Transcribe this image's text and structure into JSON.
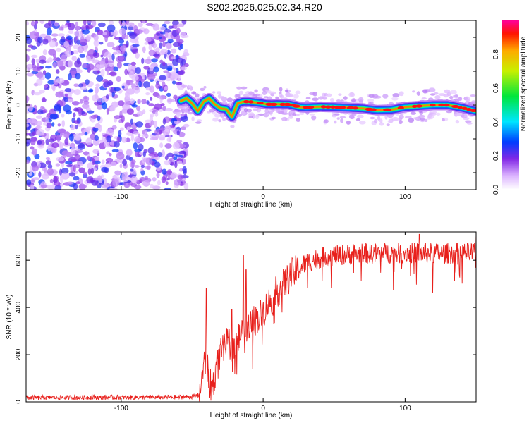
{
  "title": "S202.2026.025.02.34.R20",
  "chart_data": [
    {
      "type": "heatmap",
      "name": "spectrogram",
      "xlabel": "Height of straight line (km)",
      "ylabel": "Frequency (Hz)",
      "xlim": [
        -167,
        150
      ],
      "ylim": [
        -25,
        25
      ],
      "xticks": [
        -100,
        0,
        100
      ],
      "yticks": [
        -20,
        -10,
        0,
        10,
        20
      ],
      "noise_region_x": [
        -167,
        -58
      ],
      "ridge": {
        "x": [
          -58,
          -54,
          -50,
          -46,
          -42,
          -38,
          -34,
          -30,
          -26,
          -22,
          -18,
          -14,
          -10,
          -6,
          -2,
          2,
          6,
          10,
          14,
          18,
          22,
          26,
          30,
          40,
          50,
          60,
          70,
          80,
          90,
          100,
          110,
          120,
          130,
          140,
          150
        ],
        "y": [
          1.2,
          2.0,
          0.5,
          -1.8,
          1.0,
          2.0,
          0.2,
          -1.0,
          -1.2,
          -3.5,
          0.5,
          1.0,
          1.0,
          0.8,
          0.6,
          0.3,
          0.2,
          0.3,
          0.2,
          0.2,
          -0.2,
          -0.6,
          -0.7,
          -0.5,
          -0.6,
          -0.8,
          -1.0,
          -1.5,
          -1.4,
          -0.6,
          -0.3,
          0.0,
          0.0,
          -0.8,
          -1.8
        ]
      },
      "colorbar": {
        "label": "Normalized spectral amplitude",
        "ticks": [
          0.0,
          0.2,
          0.4,
          0.6,
          0.8
        ],
        "range": [
          0.0,
          1.0
        ]
      }
    },
    {
      "type": "line",
      "name": "snr",
      "xlabel": "Height of straight line (km)",
      "ylabel": "SNR (10 * v/v)",
      "xlim": [
        -167,
        150
      ],
      "ylim": [
        0,
        720
      ],
      "xticks": [
        -100,
        0,
        100
      ],
      "yticks": [
        0,
        200,
        400,
        600
      ],
      "series": [
        {
          "name": "SNR",
          "color": "#e8201c",
          "envelope_x": [
            -167,
            -60,
            -50,
            -45,
            -42,
            -40,
            -38,
            -36,
            -34,
            -30,
            -25,
            -20,
            -15,
            -12,
            -10,
            -5,
            0,
            5,
            10,
            15,
            20,
            25,
            30,
            40,
            50,
            60,
            70,
            80,
            90,
            100,
            110,
            120,
            130,
            140,
            150
          ],
          "envelope_y": [
            18,
            20,
            22,
            30,
            150,
            180,
            80,
            60,
            120,
            200,
            250,
            230,
            300,
            260,
            330,
            350,
            380,
            430,
            470,
            500,
            540,
            560,
            590,
            610,
            620,
            625,
            630,
            628,
            630,
            630,
            632,
            628,
            630,
            630,
            630
          ],
          "spikes": [
            [
              -40,
              480
            ],
            [
              -14,
              620
            ],
            [
              -12,
              560
            ],
            [
              -22,
              390
            ],
            [
              110,
              710
            ],
            [
              150,
              700
            ]
          ]
        }
      ]
    }
  ]
}
